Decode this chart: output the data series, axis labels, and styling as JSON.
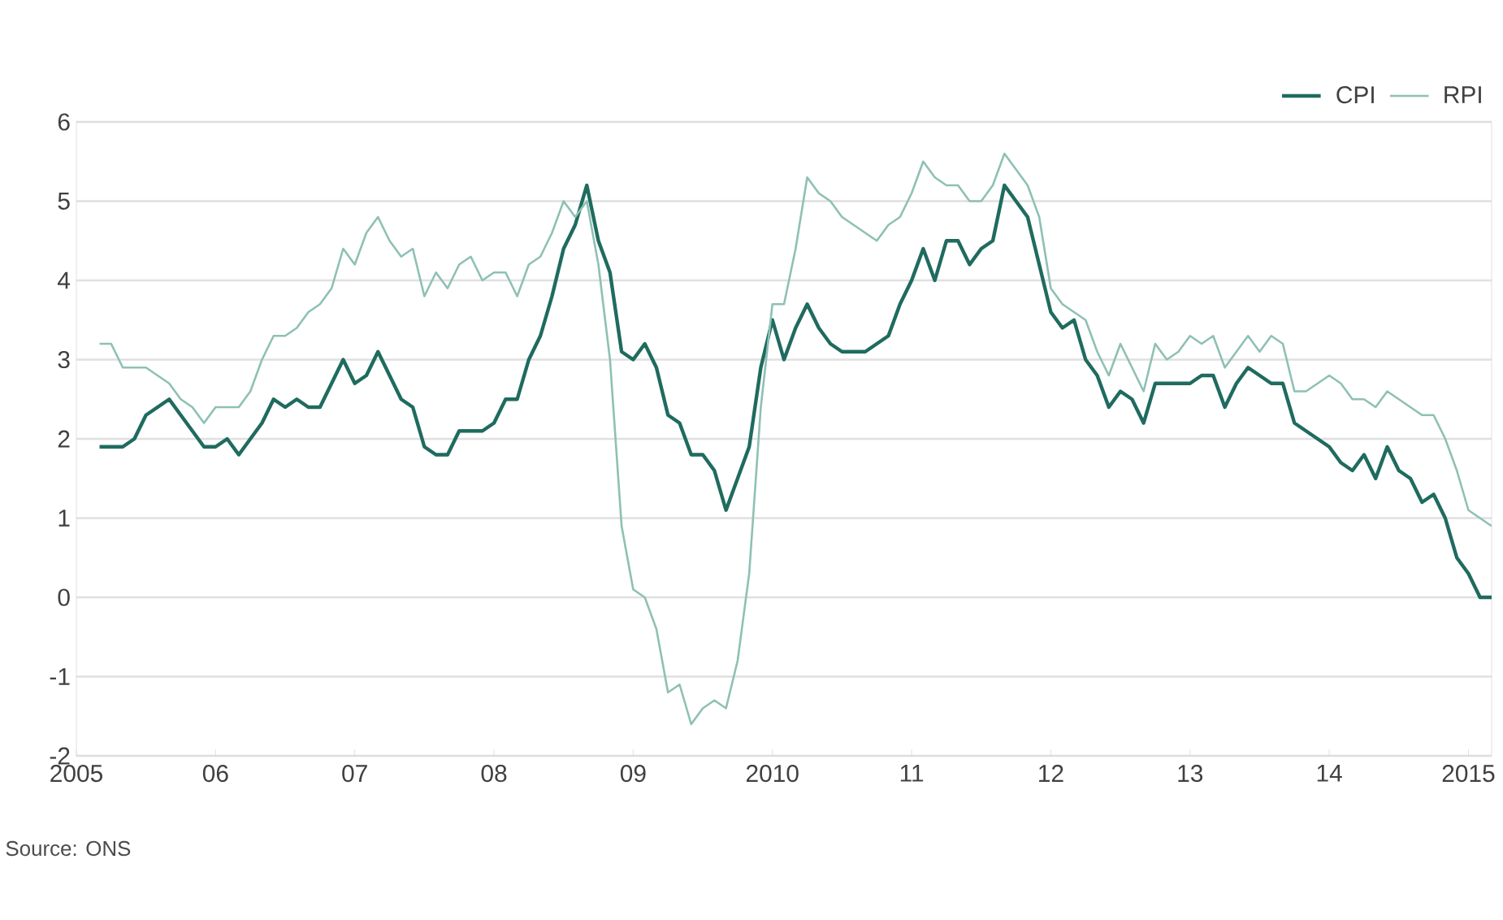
{
  "chart_data": {
    "type": "line",
    "x": [
      "2005-03",
      "2005-04",
      "2005-05",
      "2005-06",
      "2005-07",
      "2005-08",
      "2005-09",
      "2005-10",
      "2005-11",
      "2005-12",
      "2006-01",
      "2006-02",
      "2006-03",
      "2006-04",
      "2006-05",
      "2006-06",
      "2006-07",
      "2006-08",
      "2006-09",
      "2006-10",
      "2006-11",
      "2006-12",
      "2007-01",
      "2007-02",
      "2007-03",
      "2007-04",
      "2007-05",
      "2007-06",
      "2007-07",
      "2007-08",
      "2007-09",
      "2007-10",
      "2007-11",
      "2007-12",
      "2008-01",
      "2008-02",
      "2008-03",
      "2008-04",
      "2008-05",
      "2008-06",
      "2008-07",
      "2008-08",
      "2008-09",
      "2008-10",
      "2008-11",
      "2008-12",
      "2009-01",
      "2009-02",
      "2009-03",
      "2009-04",
      "2009-05",
      "2009-06",
      "2009-07",
      "2009-08",
      "2009-09",
      "2009-10",
      "2009-11",
      "2009-12",
      "2010-01",
      "2010-02",
      "2010-03",
      "2010-04",
      "2010-05",
      "2010-06",
      "2010-07",
      "2010-08",
      "2010-09",
      "2010-10",
      "2010-11",
      "2010-12",
      "2011-01",
      "2011-02",
      "2011-03",
      "2011-04",
      "2011-05",
      "2011-06",
      "2011-07",
      "2011-08",
      "2011-09",
      "2011-10",
      "2011-11",
      "2011-12",
      "2012-01",
      "2012-02",
      "2012-03",
      "2012-04",
      "2012-05",
      "2012-06",
      "2012-07",
      "2012-08",
      "2012-09",
      "2012-10",
      "2012-11",
      "2012-12",
      "2013-01",
      "2013-02",
      "2013-03",
      "2013-04",
      "2013-05",
      "2013-06",
      "2013-07",
      "2013-08",
      "2013-09",
      "2013-10",
      "2013-11",
      "2013-12",
      "2014-01",
      "2014-02",
      "2014-03",
      "2014-04",
      "2014-05",
      "2014-06",
      "2014-07",
      "2014-08",
      "2014-09",
      "2014-10",
      "2014-11",
      "2014-12",
      "2015-01",
      "2015-02",
      "2015-03"
    ],
    "series": [
      {
        "name": "CPI",
        "color": "#1f6b5f",
        "values": [
          1.9,
          1.9,
          1.9,
          2.0,
          2.3,
          2.4,
          2.5,
          2.3,
          2.1,
          1.9,
          1.9,
          2.0,
          1.8,
          2.0,
          2.2,
          2.5,
          2.4,
          2.5,
          2.4,
          2.4,
          2.7,
          3.0,
          2.7,
          2.8,
          3.1,
          2.8,
          2.5,
          2.4,
          1.9,
          1.8,
          1.8,
          2.1,
          2.1,
          2.1,
          2.2,
          2.5,
          2.5,
          3.0,
          3.3,
          3.8,
          4.4,
          4.7,
          5.2,
          4.5,
          4.1,
          3.1,
          3.0,
          3.2,
          2.9,
          2.3,
          2.2,
          1.8,
          1.8,
          1.6,
          1.1,
          1.5,
          1.9,
          2.9,
          3.5,
          3.0,
          3.4,
          3.7,
          3.4,
          3.2,
          3.1,
          3.1,
          3.1,
          3.2,
          3.3,
          3.7,
          4.0,
          4.4,
          4.0,
          4.5,
          4.5,
          4.2,
          4.4,
          4.5,
          5.2,
          5.0,
          4.8,
          4.2,
          3.6,
          3.4,
          3.5,
          3.0,
          2.8,
          2.4,
          2.6,
          2.5,
          2.2,
          2.7,
          2.7,
          2.7,
          2.7,
          2.8,
          2.8,
          2.4,
          2.7,
          2.9,
          2.8,
          2.7,
          2.7,
          2.2,
          2.1,
          2.0,
          1.9,
          1.7,
          1.6,
          1.8,
          1.5,
          1.9,
          1.6,
          1.5,
          1.2,
          1.3,
          1.0,
          0.5,
          0.3,
          0.0,
          0.0
        ]
      },
      {
        "name": "RPI",
        "color": "#8fc0b5",
        "values": [
          3.2,
          3.2,
          2.9,
          2.9,
          2.9,
          2.8,
          2.7,
          2.5,
          2.4,
          2.2,
          2.4,
          2.4,
          2.4,
          2.6,
          3.0,
          3.3,
          3.3,
          3.4,
          3.6,
          3.7,
          3.9,
          4.4,
          4.2,
          4.6,
          4.8,
          4.5,
          4.3,
          4.4,
          3.8,
          4.1,
          3.9,
          4.2,
          4.3,
          4.0,
          4.1,
          4.1,
          3.8,
          4.2,
          4.3,
          4.6,
          5.0,
          4.8,
          5.0,
          4.2,
          3.0,
          0.9,
          0.1,
          0.0,
          -0.4,
          -1.2,
          -1.1,
          -1.6,
          -1.4,
          -1.3,
          -1.4,
          -0.8,
          0.3,
          2.4,
          3.7,
          3.7,
          4.4,
          5.3,
          5.1,
          5.0,
          4.8,
          4.7,
          4.6,
          4.5,
          4.7,
          4.8,
          5.1,
          5.5,
          5.3,
          5.2,
          5.2,
          5.0,
          5.0,
          5.2,
          5.6,
          5.4,
          5.2,
          4.8,
          3.9,
          3.7,
          3.6,
          3.5,
          3.1,
          2.8,
          3.2,
          2.9,
          2.6,
          3.2,
          3.0,
          3.1,
          3.3,
          3.2,
          3.3,
          2.9,
          3.1,
          3.3,
          3.1,
          3.3,
          3.2,
          2.6,
          2.6,
          2.7,
          2.8,
          2.7,
          2.5,
          2.5,
          2.4,
          2.6,
          2.5,
          2.4,
          2.3,
          2.3,
          2.0,
          1.6,
          1.1,
          1.0,
          0.9
        ]
      }
    ],
    "xlim": [
      "2005-01",
      "2015-03"
    ],
    "xticks": [
      {
        "value": "2005-01",
        "label": "2005"
      },
      {
        "value": "2006-01",
        "label": "06"
      },
      {
        "value": "2007-01",
        "label": "07"
      },
      {
        "value": "2008-01",
        "label": "08"
      },
      {
        "value": "2009-01",
        "label": "09"
      },
      {
        "value": "2010-01",
        "label": "2010"
      },
      {
        "value": "2011-01",
        "label": "11"
      },
      {
        "value": "2012-01",
        "label": "12"
      },
      {
        "value": "2013-01",
        "label": "13"
      },
      {
        "value": "2014-01",
        "label": "14"
      },
      {
        "value": "2015-01",
        "label": "2015"
      }
    ],
    "ylim": [
      -2,
      6
    ],
    "yticks": [
      -2,
      -1,
      0,
      1,
      2,
      3,
      4,
      5,
      6
    ],
    "grid": "y",
    "legend": "top right",
    "line_style": "solid",
    "annotations": [
      "Source: ONS"
    ]
  }
}
